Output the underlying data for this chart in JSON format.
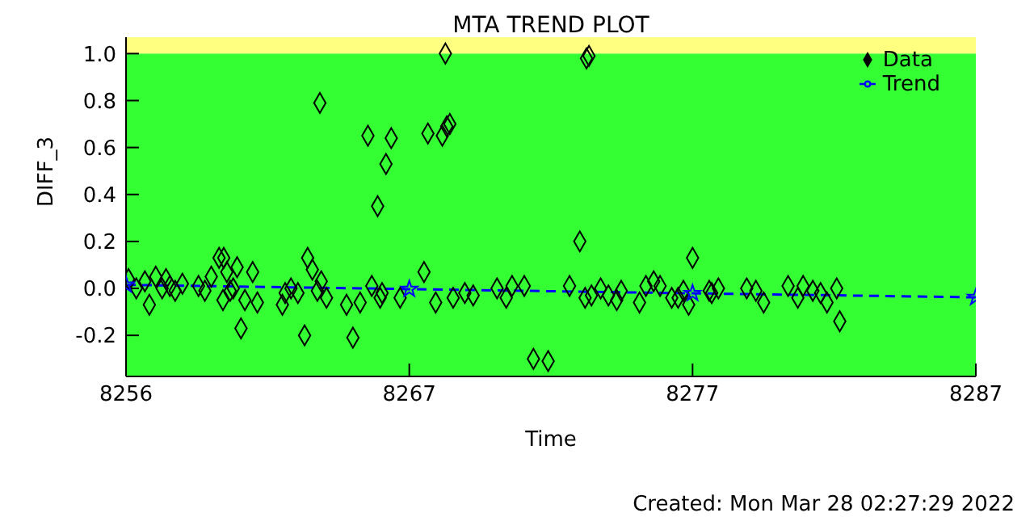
{
  "chart_data": {
    "type": "scatter",
    "title": "MTA TREND PLOT",
    "xlabel": "Time",
    "ylabel": "DIFF_3",
    "annotations": [
      "Created: Mon Mar 28 02:27:29 2022"
    ],
    "xlim": [
      8256.3,
      8286.9
    ],
    "xticks": [
      {
        "value": 8256.3,
        "label": "8256"
      },
      {
        "value": 8266.5,
        "label": "8267"
      },
      {
        "value": 8276.7,
        "label": "8277"
      },
      {
        "value": 8286.9,
        "label": "8287"
      }
    ],
    "ylim": [
      -0.375,
      1.07
    ],
    "yticks": [
      -0.2,
      {
        "value": 0,
        "label": "0.0"
      },
      0.2,
      0.4,
      0.6,
      0.8,
      {
        "value": 1,
        "label": "1.0"
      }
    ],
    "grid": false,
    "legend": "top right",
    "bands": [
      {
        "axis": "y",
        "from": -0.375,
        "to": 1.0,
        "color": "#33ff33"
      },
      {
        "axis": "y",
        "from": 1.0,
        "to": 1.07,
        "color": "#ffff80"
      }
    ],
    "series": [
      {
        "name": "Data",
        "color": "#000000",
        "marker": "diamond",
        "x": [
          8256.39,
          8256.67,
          8256.98,
          8257.14,
          8257.37,
          8257.6,
          8257.74,
          8257.88,
          8258.07,
          8258.33,
          8258.91,
          8259.14,
          8259.37,
          8259.65,
          8259.82,
          8259.79,
          8259.93,
          8260.05,
          8260.16,
          8260.3,
          8260.44,
          8260.58,
          8260.86,
          8261.03,
          8261.93,
          8262.03,
          8262.24,
          8262.49,
          8262.73,
          8262.84,
          8263.01,
          8263.19,
          8263.28,
          8263.33,
          8263.52,
          8264.24,
          8264.47,
          8264.73,
          8265.01,
          8265.15,
          8265.36,
          8265.45,
          8265.52,
          8265.66,
          8265.85,
          8266.17,
          8267.03,
          8267.17,
          8267.45,
          8267.69,
          8267.8,
          8267.85,
          8267.96,
          8268.08,
          8268.5,
          8268.8,
          8269.66,
          8269.99,
          8270.2,
          8270.64,
          8270.97,
          8271.5,
          8272.27,
          8272.64,
          8272.83,
          8272.88,
          8272.97,
          8273.06,
          8273.39,
          8273.67,
          8273.97,
          8274.13,
          8274.79,
          8275.02,
          8275.3,
          8275.53,
          8275.95,
          8276.18,
          8276.37,
          8276.56,
          8276.7,
          8277.3,
          8277.39,
          8277.63,
          8278.65,
          8278.98,
          8279.26,
          8280.14,
          8280.49,
          8280.68,
          8281.03,
          8281.31,
          8281.54,
          8281.89,
          8282.0
        ],
        "values": [
          0.04,
          0.0,
          0.03,
          -0.07,
          0.05,
          0.0,
          0.04,
          0.01,
          -0.01,
          0.02,
          0.01,
          -0.01,
          0.05,
          0.13,
          0.13,
          -0.05,
          0.07,
          -0.01,
          0.0,
          0.09,
          -0.17,
          -0.05,
          0.07,
          -0.06,
          -0.07,
          -0.02,
          0.0,
          -0.02,
          -0.2,
          0.13,
          0.08,
          -0.01,
          0.79,
          0.03,
          -0.04,
          -0.07,
          -0.21,
          -0.06,
          0.65,
          0.01,
          0.35,
          -0.04,
          -0.02,
          0.53,
          0.64,
          -0.04,
          0.07,
          0.66,
          -0.06,
          0.65,
          1.0,
          0.69,
          0.7,
          -0.04,
          -0.02,
          -0.03,
          0.0,
          -0.04,
          0.01,
          0.01,
          -0.3,
          -0.31,
          0.01,
          0.2,
          -0.04,
          0.98,
          0.99,
          -0.03,
          0.0,
          -0.03,
          -0.05,
          -0.01,
          -0.06,
          0.01,
          0.03,
          0.01,
          -0.04,
          -0.04,
          -0.01,
          -0.07,
          0.13,
          -0.01,
          -0.02,
          0.0,
          0.0,
          -0.01,
          -0.06,
          0.01,
          -0.04,
          0.01,
          -0.01,
          -0.02,
          -0.06,
          0.0,
          -0.14
        ]
      },
      {
        "name": "Trend",
        "type": "line",
        "color": "#0000ff",
        "marker": "star",
        "line_style": "dashed",
        "x": [
          8256.3,
          8266.5,
          8276.7,
          8286.9
        ],
        "values": [
          0.015,
          -0.003,
          -0.021,
          -0.038
        ]
      }
    ]
  }
}
